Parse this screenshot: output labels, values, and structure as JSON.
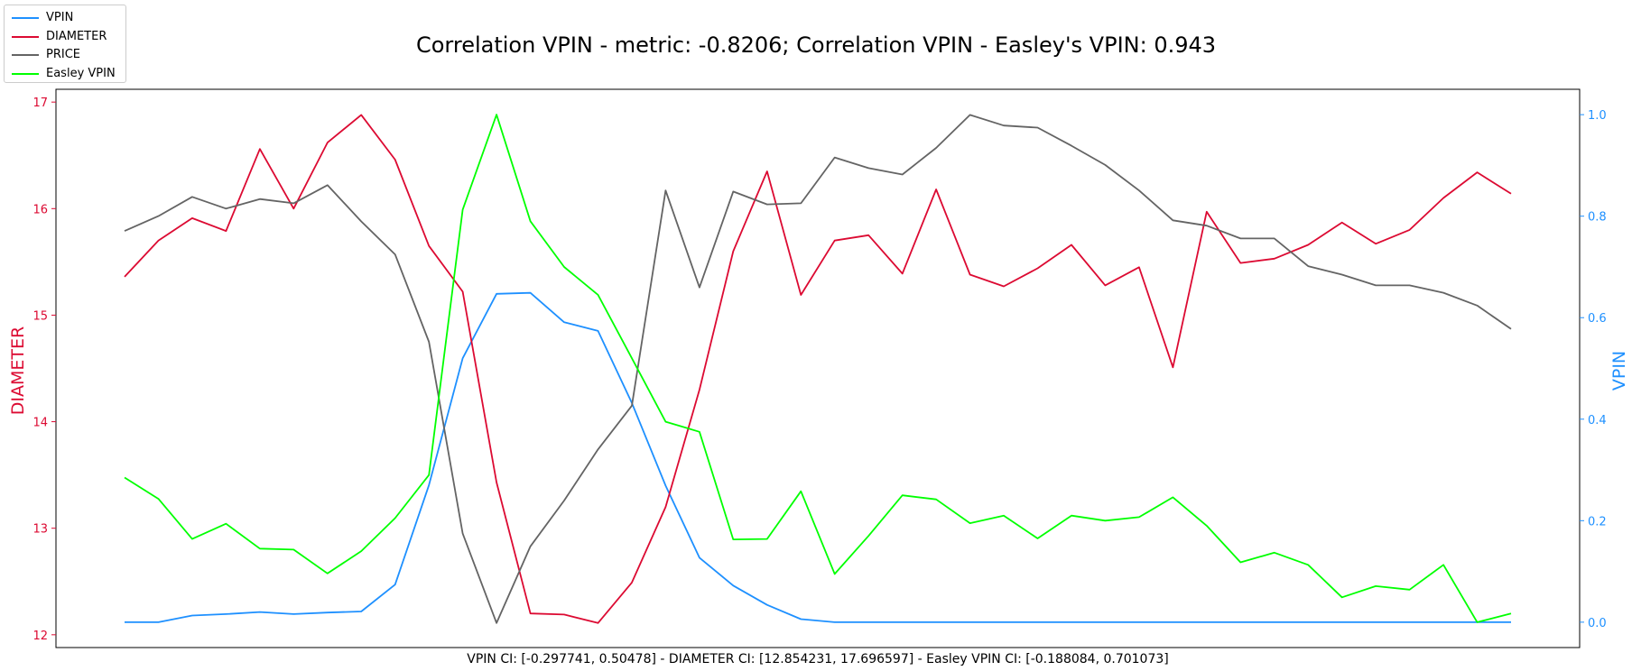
{
  "chart_data": {
    "type": "line",
    "title": "Correlation VPIN - metric: -0.8206; Correlation VPIN - Easley's VPIN: 0.943",
    "xlabel": "VPIN CI: [-0.297741, 0.50478] - DIAMETER CI: [12.854231, 17.696597] - Easley VPIN CI: [-0.188084, 0.701073]",
    "ylabel_left": "DIAMETER",
    "ylabel_right": "VPIN",
    "ylim_left": [
      11.88,
      17.12
    ],
    "ylim_right": [
      -0.05,
      1.05
    ],
    "yticks_left": [
      "12",
      "13",
      "14",
      "15",
      "16",
      "17"
    ],
    "yticks_right": [
      "0.0",
      "0.2",
      "0.4",
      "0.6",
      "0.8",
      "1.0"
    ],
    "grid": false,
    "legend_position": "top-left",
    "series": [
      {
        "name": "VPIN",
        "color": "#1e90ff",
        "axis": "right",
        "values": [
          0.0,
          0.0,
          0.013,
          0.016,
          0.02,
          0.016,
          0.019,
          0.021,
          0.074,
          0.27,
          0.52,
          0.647,
          0.649,
          0.591,
          0.574,
          0.432,
          0.269,
          0.127,
          0.072,
          0.034,
          0.006,
          0.0,
          0.0,
          0.0,
          0.0,
          0.0,
          0.0,
          0.0,
          0.0,
          0.0,
          0.0,
          0.0,
          0.0,
          0.0,
          0.0,
          0.0,
          0.0,
          0.0,
          0.0,
          0.0,
          0.0,
          0.0
        ]
      },
      {
        "name": "DIAMETER",
        "color": "#dc0a32",
        "axis": "left",
        "values": [
          15.36,
          15.7,
          15.91,
          15.79,
          16.56,
          16.0,
          16.62,
          16.88,
          16.46,
          15.65,
          15.22,
          13.43,
          12.2,
          12.19,
          12.11,
          12.49,
          13.2,
          14.3,
          15.6,
          16.35,
          15.19,
          15.7,
          15.75,
          15.39,
          16.18,
          15.38,
          15.27,
          15.44,
          15.66,
          15.28,
          15.45,
          14.51,
          15.97,
          15.49,
          15.53,
          15.66,
          15.87,
          15.67,
          15.8,
          16.1,
          16.34,
          16.14
        ]
      },
      {
        "name": "PRICE",
        "color": "#646464",
        "axis": "left",
        "values": [
          15.79,
          15.93,
          16.11,
          16.0,
          16.09,
          16.05,
          16.22,
          15.88,
          15.57,
          14.75,
          12.95,
          12.11,
          12.83,
          13.26,
          13.74,
          14.15,
          16.17,
          15.26,
          16.16,
          16.04,
          16.05,
          16.48,
          16.38,
          16.32,
          16.57,
          16.88,
          16.78,
          16.76,
          16.59,
          16.41,
          16.17,
          15.89,
          15.84,
          15.72,
          15.72,
          15.46,
          15.38,
          15.28,
          15.28,
          15.21,
          15.09,
          14.87
        ]
      },
      {
        "name": "Easley VPIN",
        "color": "#00ff00",
        "axis": "right",
        "values": [
          0.285,
          0.243,
          0.164,
          0.194,
          0.145,
          0.143,
          0.096,
          0.14,
          0.205,
          0.29,
          0.813,
          1.0,
          0.79,
          0.7,
          0.645,
          0.52,
          0.395,
          0.375,
          0.163,
          0.164,
          0.258,
          0.095,
          0.17,
          0.25,
          0.242,
          0.195,
          0.21,
          0.165,
          0.21,
          0.2,
          0.207,
          0.246,
          0.19,
          0.118,
          0.137,
          0.113,
          0.049,
          0.071,
          0.064,
          0.113,
          0.0,
          0.017
        ]
      }
    ]
  }
}
